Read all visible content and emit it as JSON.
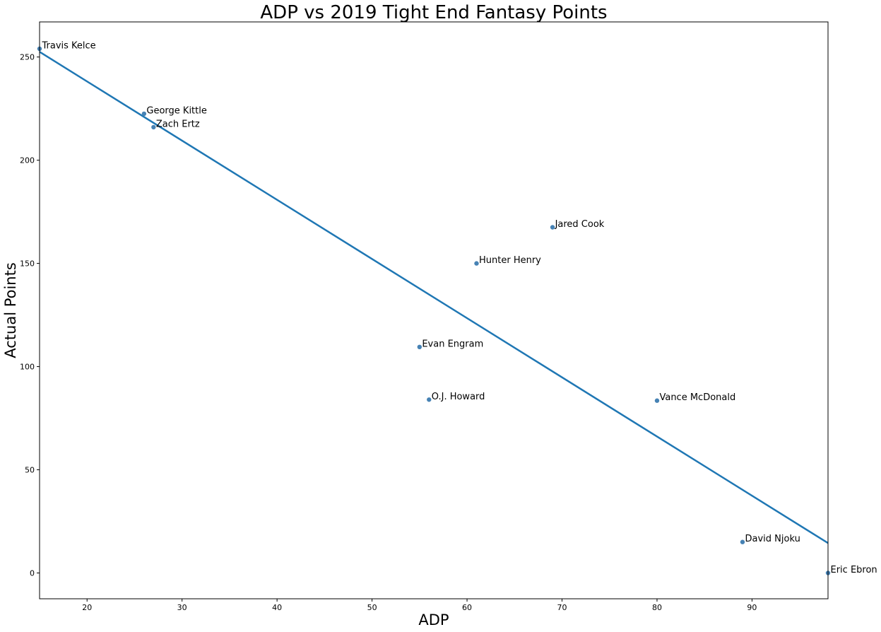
{
  "chart_data": {
    "type": "scatter",
    "title": "ADP vs 2019 Tight End Fantasy Points",
    "xlabel": "ADP",
    "ylabel": "Actual Points",
    "xlim": [
      15,
      98
    ],
    "ylim": [
      -12.5,
      267
    ],
    "xticks": [
      20,
      30,
      40,
      50,
      60,
      70,
      80,
      90
    ],
    "yticks": [
      0,
      50,
      100,
      150,
      200,
      250
    ],
    "grid": false,
    "points": [
      {
        "label": "Travis Kelce",
        "x": 15,
        "y": 254
      },
      {
        "label": "George Kittle",
        "x": 26,
        "y": 222.5
      },
      {
        "label": "Zach Ertz",
        "x": 27,
        "y": 216
      },
      {
        "label": "Jared Cook",
        "x": 69,
        "y": 167.5
      },
      {
        "label": "Hunter Henry",
        "x": 61,
        "y": 150
      },
      {
        "label": "Evan Engram",
        "x": 55,
        "y": 109.5
      },
      {
        "label": "O.J. Howard",
        "x": 56,
        "y": 84
      },
      {
        "label": "Vance McDonald",
        "x": 80,
        "y": 83.5
      },
      {
        "label": "David Njoku",
        "x": 89,
        "y": 15
      },
      {
        "label": "Eric Ebron",
        "x": 98,
        "y": 0
      }
    ],
    "fit_line": {
      "x": [
        15,
        98
      ],
      "y": [
        252.5,
        14.5
      ]
    },
    "colors": {
      "point": "#4682b4",
      "line": "#1f77b4"
    }
  }
}
